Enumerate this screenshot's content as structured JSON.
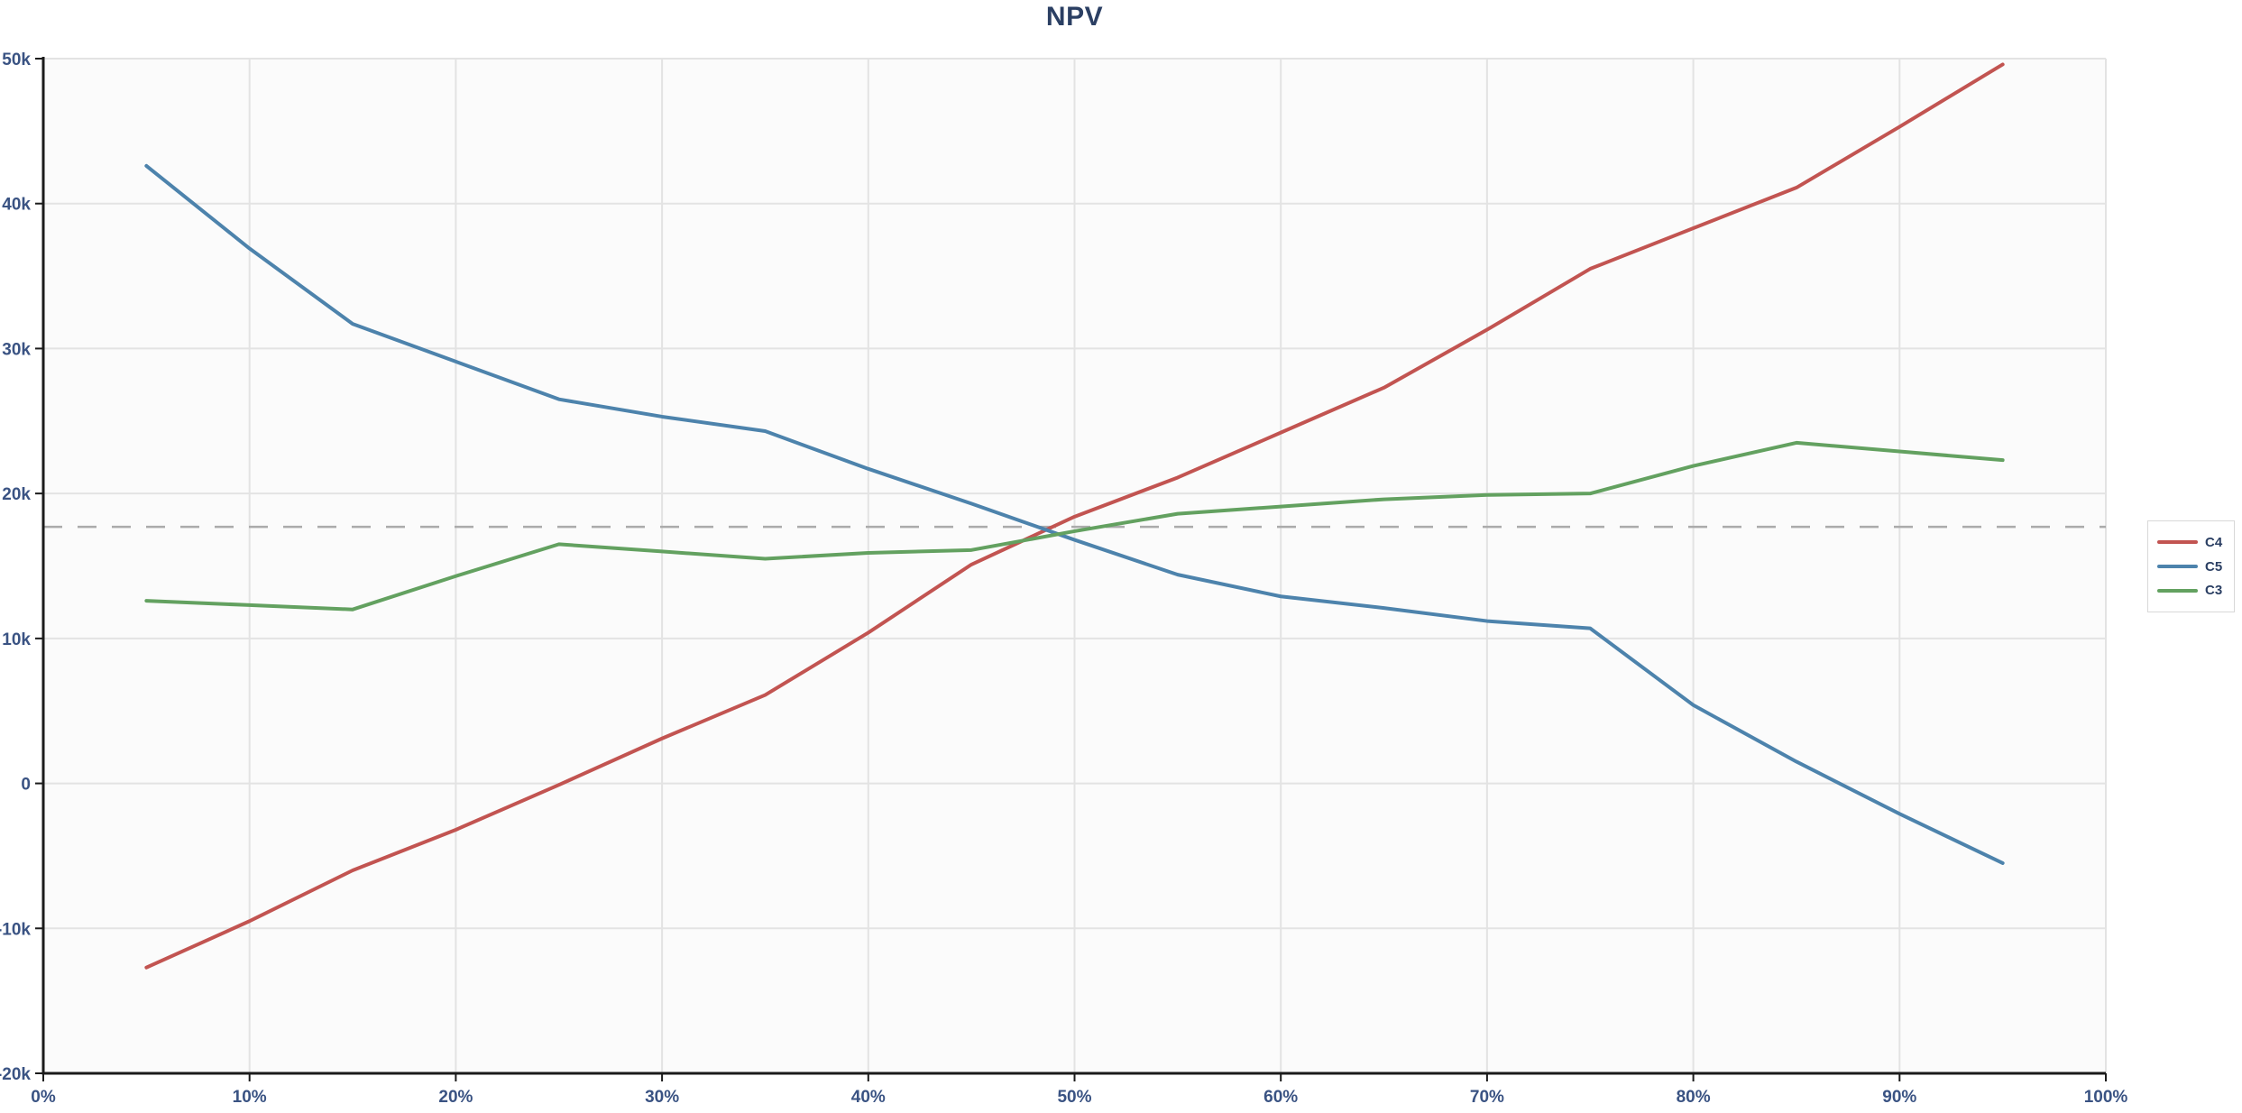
{
  "chart_data": {
    "type": "line",
    "title": "NPV",
    "xlabel": "",
    "ylabel": "",
    "xlim": [
      0,
      100
    ],
    "ylim": [
      -20000,
      50000
    ],
    "grid": true,
    "legend_position": "right-middle",
    "x_ticks": [
      0,
      10,
      20,
      30,
      40,
      50,
      60,
      70,
      80,
      90,
      100
    ],
    "x_tick_labels": [
      "0%",
      "10%",
      "20%",
      "30%",
      "40%",
      "50%",
      "60%",
      "70%",
      "80%",
      "90%",
      "100%"
    ],
    "y_ticks": [
      50000,
      40000,
      30000,
      20000,
      10000,
      0,
      -10000,
      -20000
    ],
    "y_tick_labels": [
      "50k",
      "40k",
      "30k",
      "20k",
      "10k",
      "0",
      "-10k",
      "-20k"
    ],
    "threshold_line": {
      "value": 17700,
      "style": "dashed",
      "color": "#ababab"
    },
    "x": [
      5,
      10,
      15,
      20,
      25,
      30,
      35,
      40,
      45,
      50,
      55,
      60,
      65,
      70,
      75,
      80,
      85,
      90,
      95
    ],
    "series": [
      {
        "name": "C4",
        "color": "#c25451",
        "values": [
          -12700,
          -9500,
          -6000,
          -3200,
          -100,
          3100,
          6100,
          10400,
          15100,
          18400,
          21100,
          24200,
          27300,
          31300,
          35500,
          38300,
          41100,
          45300,
          49600
        ]
      },
      {
        "name": "C5",
        "color": "#4d83ac",
        "values": [
          42600,
          36900,
          31700,
          29100,
          26500,
          25300,
          24300,
          21700,
          19300,
          16800,
          14400,
          12900,
          12100,
          11200,
          10700,
          5400,
          1500,
          -2100,
          -5500
        ]
      },
      {
        "name": "C3",
        "color": "#63a160",
        "values": [
          12600,
          12300,
          12000,
          14300,
          16500,
          16000,
          15500,
          15900,
          16100,
          17400,
          18600,
          19100,
          19600,
          19900,
          20000,
          21900,
          23500,
          22900,
          22300
        ]
      }
    ]
  },
  "colors": {
    "title_text": "#2b3f63",
    "tick_text": "#3a5383",
    "axis_line": "#1b1b1b",
    "gridline": "#e3e3e3",
    "plot_background": "#fbfbfb",
    "legend_border": "#d8d8d8",
    "legend_text": "#2b3f63"
  }
}
